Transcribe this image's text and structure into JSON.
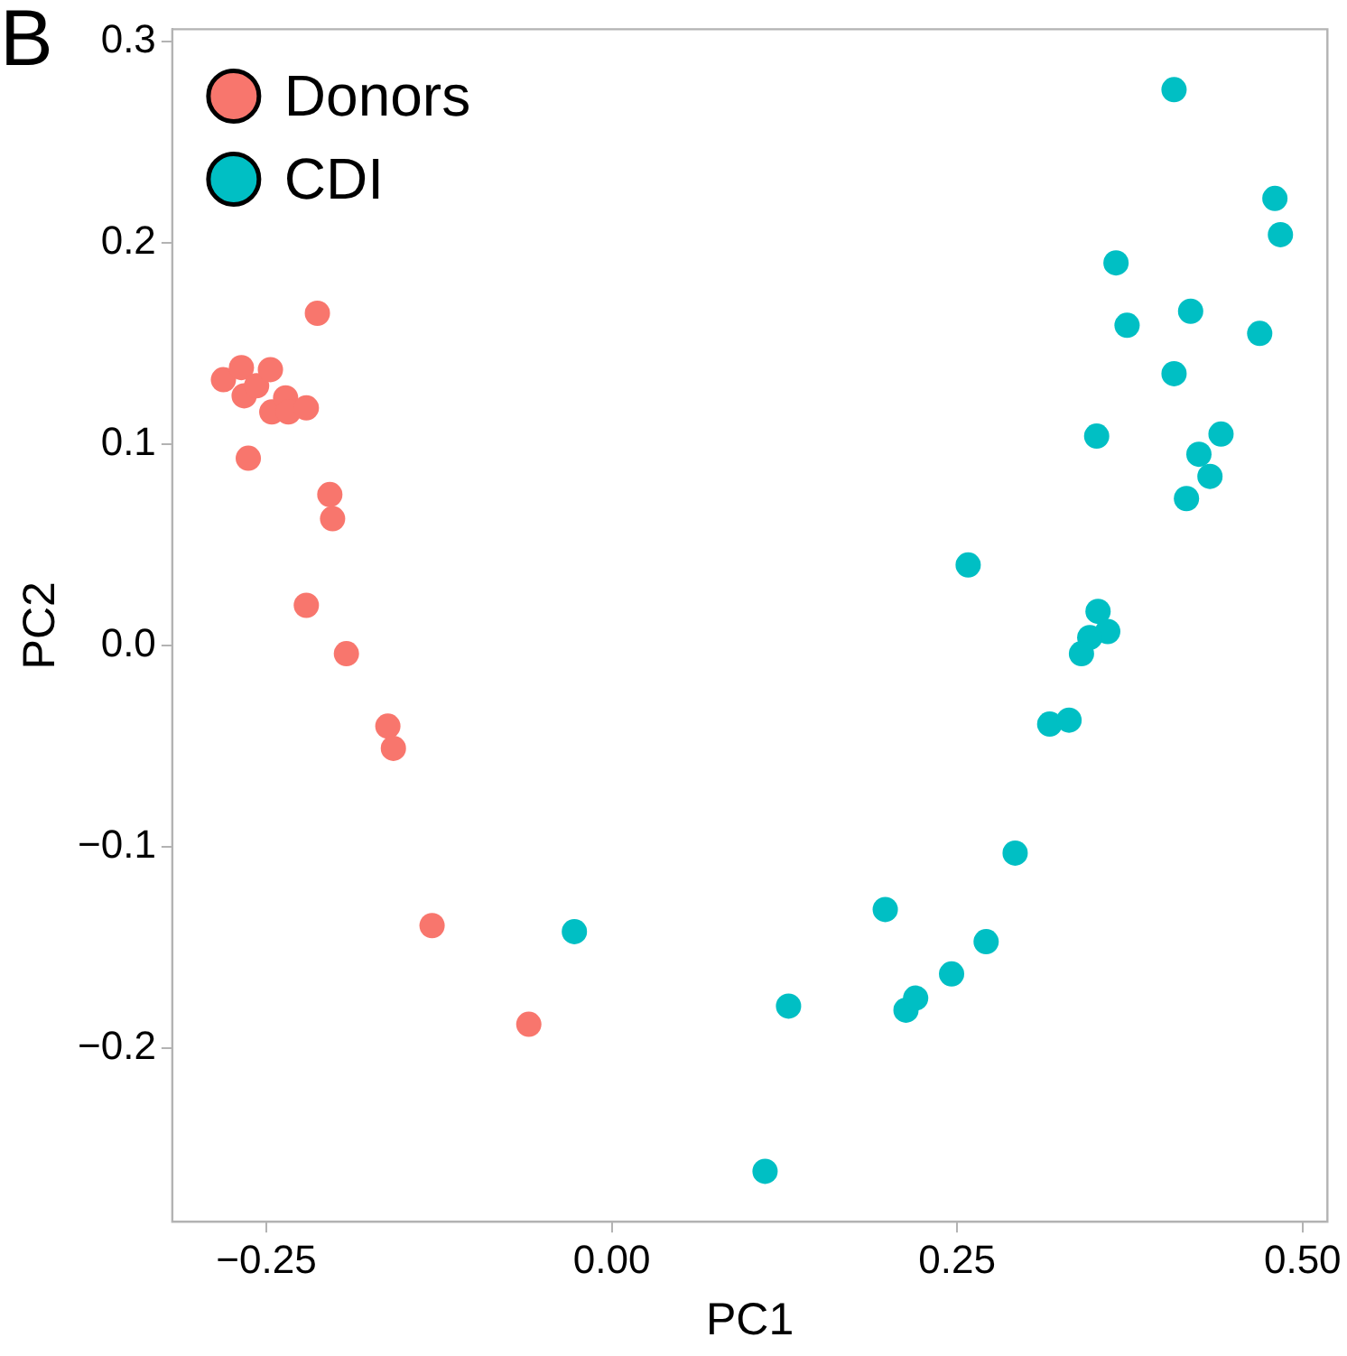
{
  "chart_data": {
    "type": "scatter",
    "xlabel": "PC1",
    "ylabel": "PC2",
    "annotations": [
      "B"
    ],
    "legend": "top left",
    "grid": false,
    "marker": "circle",
    "xlim": [
      -0.318,
      0.518
    ],
    "ylim": [
      -0.286,
      0.306
    ],
    "xticks": [
      {
        "value": -0.25,
        "label": "−0.25"
      },
      {
        "value": 0,
        "label": "0.00"
      },
      {
        "value": 0.25,
        "label": "0.25"
      },
      {
        "value": 0.5,
        "label": "0.50"
      }
    ],
    "yticks": [
      {
        "value": -0.2,
        "label": "−0.2"
      },
      {
        "value": -0.1,
        "label": "−0.1"
      },
      {
        "value": 0,
        "label": "0.0"
      },
      {
        "value": 0.1,
        "label": "0.1"
      },
      {
        "value": 0.2,
        "label": "0.2"
      },
      {
        "value": 0.3,
        "label": "0.3"
      }
    ],
    "series": [
      {
        "name": "Donors",
        "color": "#f8766d",
        "x": [
          -0.281,
          -0.268,
          -0.266,
          -0.257,
          -0.247,
          -0.246,
          -0.236,
          -0.234,
          -0.221,
          -0.213,
          -0.263,
          -0.204,
          -0.202,
          -0.221,
          -0.192,
          -0.162,
          -0.158,
          -0.13,
          -0.06
        ],
        "values": [
          0.132,
          0.138,
          0.124,
          0.129,
          0.137,
          0.116,
          0.123,
          0.116,
          0.118,
          0.165,
          0.093,
          0.075,
          0.063,
          0.02,
          -0.004,
          -0.04,
          -0.051,
          -0.139,
          -0.188
        ]
      },
      {
        "name": "CDI",
        "color": "#00bfc4",
        "x": [
          -0.027,
          0.128,
          0.111,
          0.198,
          0.213,
          0.22,
          0.246,
          0.271,
          0.292,
          0.258,
          0.317,
          0.331,
          0.407,
          0.48,
          0.484,
          0.365,
          0.419,
          0.373,
          0.469,
          0.407,
          0.351,
          0.441,
          0.425,
          0.433,
          0.416,
          0.352,
          0.359,
          0.346,
          0.34
        ],
        "values": [
          -0.142,
          -0.179,
          -0.261,
          -0.131,
          -0.181,
          -0.175,
          -0.163,
          -0.147,
          -0.103,
          0.04,
          -0.039,
          -0.037,
          0.276,
          0.222,
          0.204,
          0.19,
          0.166,
          0.159,
          0.155,
          0.135,
          0.104,
          0.105,
          0.095,
          0.084,
          0.073,
          0.017,
          0.007,
          0.004,
          -0.004
        ]
      }
    ]
  }
}
